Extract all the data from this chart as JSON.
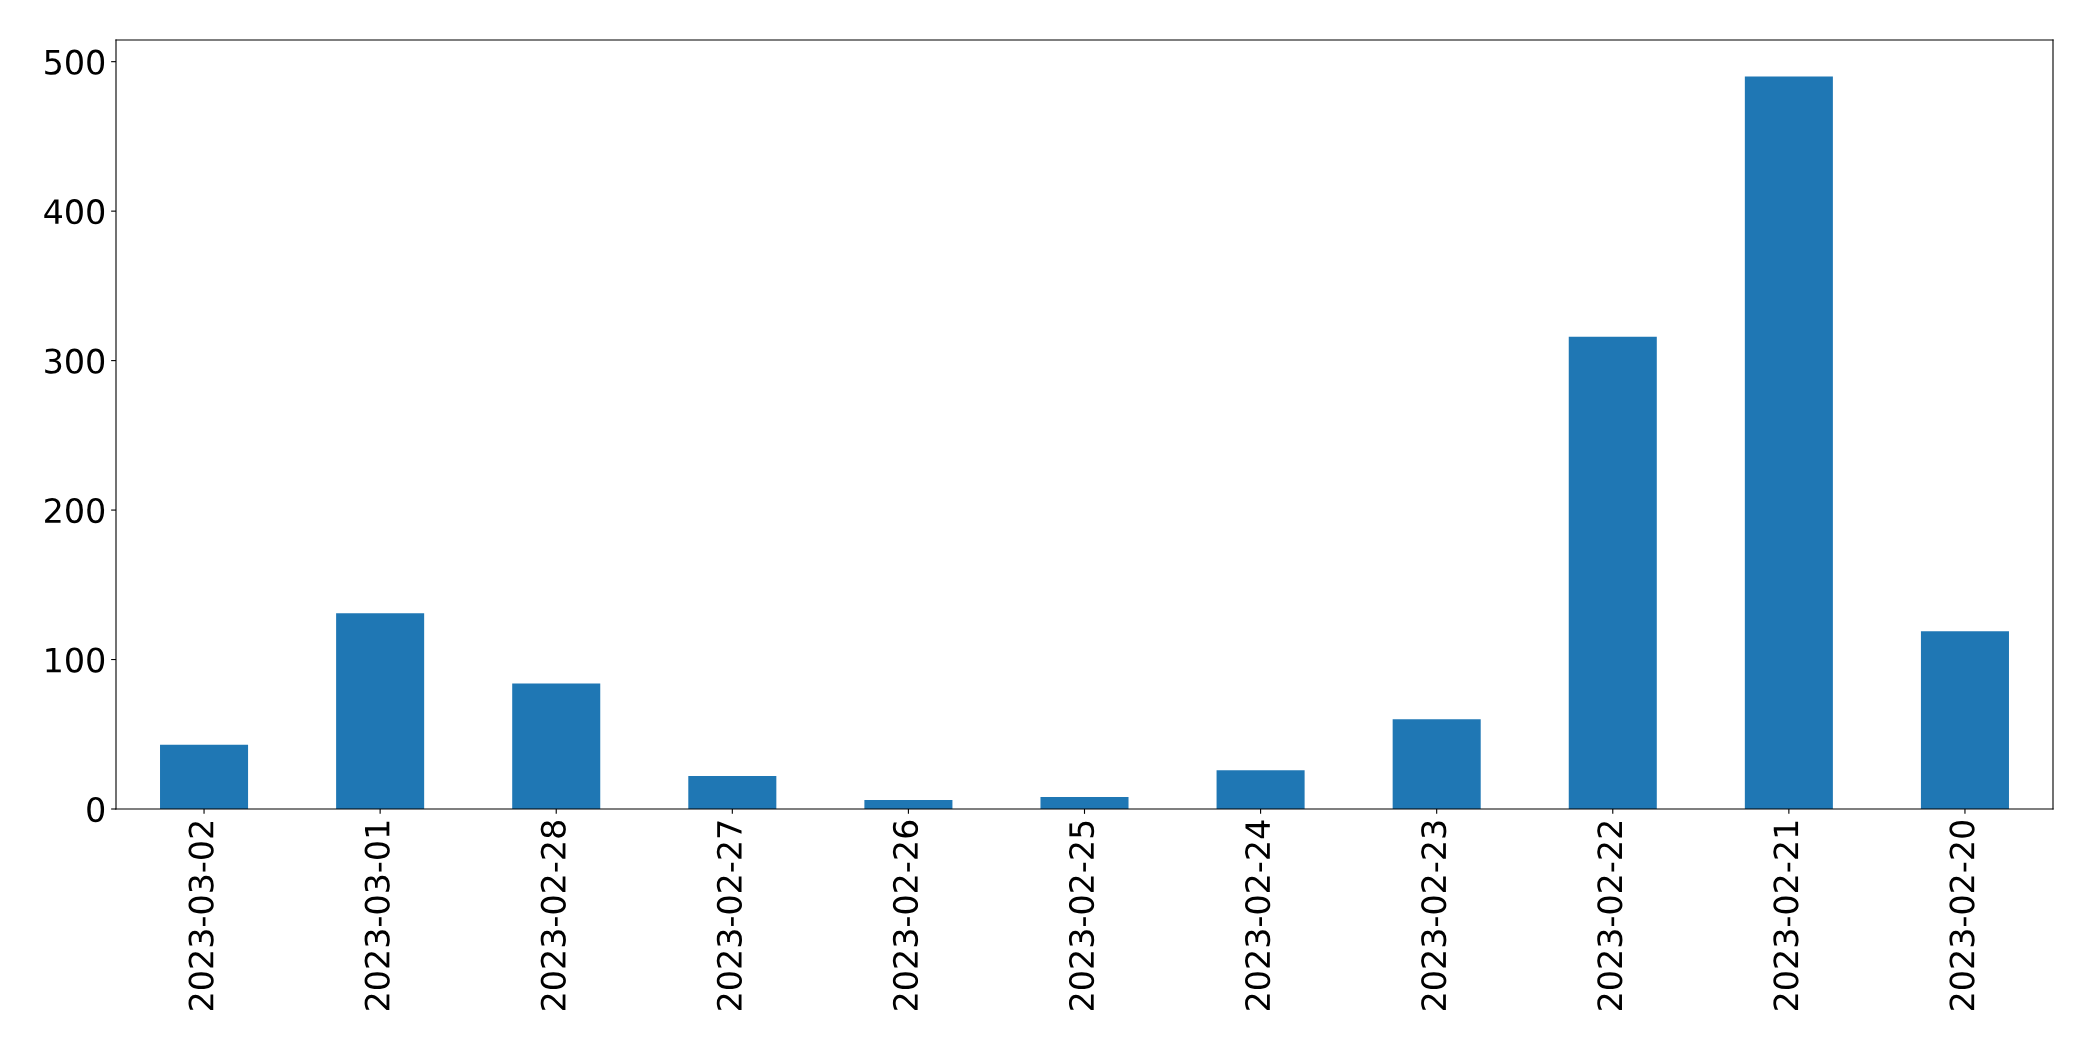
{
  "chart_data": {
    "type": "bar",
    "categories": [
      "2023-03-02",
      "2023-03-01",
      "2023-02-28",
      "2023-02-27",
      "2023-02-26",
      "2023-02-25",
      "2023-02-24",
      "2023-02-23",
      "2023-02-22",
      "2023-02-21",
      "2023-02-20"
    ],
    "values": [
      43,
      131,
      84,
      22,
      6,
      8,
      26,
      60,
      316,
      490,
      119
    ],
    "color": "#1f77b4",
    "ylim": [
      0,
      514.5
    ],
    "yticks": [
      0,
      100,
      200,
      300,
      400,
      500
    ],
    "grid": false
  }
}
